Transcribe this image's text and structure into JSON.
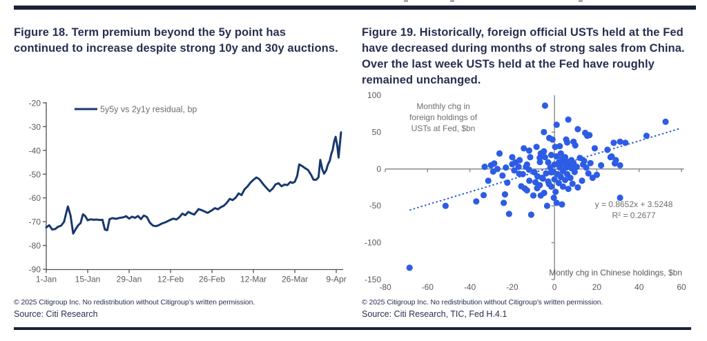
{
  "figures": {
    "fig18": {
      "title_lines": [
        "Figure 18. Term premium beyond the 5y point has",
        "continued to increase despite strong 10y and 30y auctions."
      ],
      "footer": {
        "copyright": "© 2025 Citigroup Inc. No redistribution without Citigroup’s written permission.",
        "source": "Source: Citi Research"
      }
    },
    "fig19": {
      "title_lines": [
        "Figure 19. Historically, foreign official USTs held at the Fed",
        "have decreased during months of strong sales from China.",
        "Over the last week USTs held at the Fed have roughly",
        "remained unchanged."
      ],
      "footer": {
        "copyright": "© 2025 Citigroup Inc. No redistribution without Citigroup’s written permission.",
        "source": "Source: Citi Research, TIC, Fed H.4.1"
      }
    }
  },
  "chart_data": [
    {
      "id": "fig18",
      "type": "line",
      "title": "Term premium beyond the 5y point has continued to increase despite strong 10y and 30y auctions",
      "axis_color": "#4f4f4f",
      "xlim_days": [
        0,
        98
      ],
      "ylim": [
        -90,
        -20
      ],
      "y_ticks": [
        -20,
        -30,
        -40,
        -50,
        -60,
        -70,
        -80,
        -90
      ],
      "x_ticks": [
        {
          "d": 0,
          "label": "1-Jan"
        },
        {
          "d": 14,
          "label": "15-Jan"
        },
        {
          "d": 28,
          "label": "29-Jan"
        },
        {
          "d": 42,
          "label": "12-Feb"
        },
        {
          "d": 56,
          "label": "26-Feb"
        },
        {
          "d": 70,
          "label": "12-Mar"
        },
        {
          "d": 84,
          "label": "26-Mar"
        },
        {
          "d": 98,
          "label": "9-Apr"
        }
      ],
      "series": [
        {
          "name": "5y5y vs 2y1y residual, bp",
          "color": "#17386e",
          "unit": "bp",
          "points": [
            [
              0,
              -72.4
            ],
            [
              1,
              -71.5
            ],
            [
              2,
              -73.3
            ],
            [
              3,
              -73.1
            ],
            [
              4,
              -72.1
            ],
            [
              5,
              -71.7
            ],
            [
              6,
              -70.1
            ],
            [
              7.3,
              -63.6
            ],
            [
              8.2,
              -67.3
            ],
            [
              9.1,
              -75.0
            ],
            [
              10,
              -73.0
            ],
            [
              10.8,
              -71.5
            ],
            [
              11.6,
              -70.6
            ],
            [
              12.4,
              -66.9
            ],
            [
              13.2,
              -67.7
            ],
            [
              14,
              -69.4
            ],
            [
              15,
              -69.0
            ],
            [
              16,
              -69.2
            ],
            [
              17,
              -69.1
            ],
            [
              18,
              -69.3
            ],
            [
              19,
              -69.2
            ],
            [
              19.8,
              -73.3
            ],
            [
              20.6,
              -73.6
            ],
            [
              21.4,
              -68.9
            ],
            [
              22.4,
              -68.5
            ],
            [
              23.6,
              -68.8
            ],
            [
              24.8,
              -68.4
            ],
            [
              26,
              -68.2
            ],
            [
              27,
              -67.7
            ],
            [
              28,
              -68.7
            ],
            [
              29,
              -67.9
            ],
            [
              30,
              -68.4
            ],
            [
              31,
              -67.6
            ],
            [
              32,
              -68.9
            ],
            [
              33,
              -67.4
            ],
            [
              34,
              -68.0
            ],
            [
              35,
              -70.4
            ],
            [
              36,
              -71.6
            ],
            [
              37,
              -71.9
            ],
            [
              38,
              -71.5
            ],
            [
              39,
              -70.8
            ],
            [
              40,
              -70.4
            ],
            [
              41,
              -69.8
            ],
            [
              42,
              -69.2
            ],
            [
              43,
              -68.7
            ],
            [
              44,
              -69.1
            ],
            [
              45,
              -68.1
            ],
            [
              46,
              -66.6
            ],
            [
              47,
              -67.3
            ],
            [
              48,
              -65.9
            ],
            [
              49,
              -66.5
            ],
            [
              50,
              -67.0
            ],
            [
              51.5,
              -64.7
            ],
            [
              53,
              -65.4
            ],
            [
              54.5,
              -66.3
            ],
            [
              56,
              -65.2
            ],
            [
              57,
              -64.3
            ],
            [
              58,
              -64.8
            ],
            [
              59,
              -63.9
            ],
            [
              60,
              -63.3
            ],
            [
              61,
              -62.1
            ],
            [
              62,
              -60.4
            ],
            [
              63,
              -60.9
            ],
            [
              64,
              -59.9
            ],
            [
              65,
              -58.1
            ],
            [
              66,
              -58.8
            ],
            [
              67,
              -56.4
            ],
            [
              68,
              -55.2
            ],
            [
              69,
              -53.6
            ],
            [
              70,
              -52.4
            ],
            [
              71,
              -51.4
            ],
            [
              72,
              -52.1
            ],
            [
              73.5,
              -54.5
            ],
            [
              74.5,
              -55.9
            ],
            [
              75.5,
              -57.2
            ],
            [
              76.5,
              -56.1
            ],
            [
              77.5,
              -54.3
            ],
            [
              78.5,
              -53.8
            ],
            [
              79.5,
              -55.1
            ],
            [
              80.5,
              -54.4
            ],
            [
              81.5,
              -54.6
            ],
            [
              82.5,
              -53.3
            ],
            [
              83.2,
              -53.7
            ],
            [
              84,
              -53.2
            ],
            [
              84.8,
              -50.8
            ],
            [
              85.5,
              -45.9
            ],
            [
              86.5,
              -46.6
            ],
            [
              87.5,
              -47.5
            ],
            [
              88.5,
              -48.3
            ],
            [
              89.5,
              -50.3
            ],
            [
              90.3,
              -52.3
            ],
            [
              91.2,
              -52.4
            ],
            [
              92,
              -51.3
            ],
            [
              92.6,
              -44.0
            ],
            [
              93.3,
              -48.0
            ],
            [
              93.9,
              -49.8
            ],
            [
              94.6,
              -48.4
            ],
            [
              95.2,
              -45.9
            ],
            [
              95.8,
              -44.4
            ],
            [
              96.3,
              -41.6
            ],
            [
              96.8,
              -39.7
            ],
            [
              97.3,
              -36.3
            ],
            [
              97.8,
              -34.3
            ],
            [
              98.4,
              -38.5
            ],
            [
              98.8,
              -43.0
            ],
            [
              99.6,
              -32.4
            ]
          ]
        }
      ]
    },
    {
      "id": "fig19",
      "type": "scatter",
      "title": "Monthly change in foreign holdings of USTs at Fed vs monthly change in Chinese holdings",
      "axis_color": "#7f7f7f",
      "point_color": "#2d5ce5",
      "xlim": [
        -80,
        60
      ],
      "ylim": [
        -150,
        100
      ],
      "x_ticks": [
        -80,
        -60,
        -40,
        -20,
        0,
        20,
        40,
        60
      ],
      "y_ticks": [
        100,
        50,
        0,
        -50,
        -100,
        -150
      ],
      "y_annotation_lines": [
        "Monthly chg in",
        "foreign holdings of",
        "USTs at Fed, $bn"
      ],
      "xlabel": "Montly chg in Chinese holdings, $bn",
      "trendline": {
        "equation": "y = 0.8652x + 3.5248",
        "r2": "R² = 0.2677",
        "slope": 0.8652,
        "intercept": 3.5248,
        "x_start": -68.5,
        "x_end": 59.5,
        "style": "dotted"
      },
      "points": [
        [
          -68.5,
          -134
        ],
        [
          -51.5,
          -50
        ],
        [
          -37,
          -44
        ],
        [
          -33.5,
          -35.5
        ],
        [
          -24,
          -46
        ],
        [
          -23.4,
          -34.5
        ],
        [
          -21.5,
          -61
        ],
        [
          -11,
          -62
        ],
        [
          -10,
          -36
        ],
        [
          -6.5,
          -36
        ],
        [
          -4.9,
          -32.5
        ],
        [
          -3.5,
          -50
        ],
        [
          1,
          -46
        ],
        [
          3.5,
          -48
        ],
        [
          -0.3,
          -39
        ],
        [
          31,
          -39
        ],
        [
          0.5,
          -31
        ],
        [
          -13,
          -29
        ],
        [
          6.5,
          -27
        ],
        [
          -8.2,
          -26
        ],
        [
          -14,
          -26.5
        ],
        [
          11,
          -25
        ],
        [
          -1.5,
          -24
        ],
        [
          4,
          -24
        ],
        [
          -15.7,
          -23.5
        ],
        [
          -7,
          -22
        ],
        [
          -2.6,
          -20.5
        ],
        [
          8.5,
          -20
        ],
        [
          2,
          -19
        ],
        [
          -22.3,
          -18.5
        ],
        [
          -9,
          -18
        ],
        [
          -3,
          -17
        ],
        [
          -31.3,
          -16
        ],
        [
          -11.9,
          -16
        ],
        [
          13,
          -16
        ],
        [
          5,
          -15
        ],
        [
          0,
          -14
        ],
        [
          -5.5,
          -13
        ],
        [
          7.5,
          -12
        ],
        [
          18,
          -12
        ],
        [
          -5.9,
          -12
        ],
        [
          3,
          -11
        ],
        [
          -8,
          -10
        ],
        [
          -24.6,
          -9
        ],
        [
          1.5,
          -7
        ],
        [
          6,
          -7
        ],
        [
          -15,
          -7
        ],
        [
          16,
          -6
        ],
        [
          -16.7,
          -6.5
        ],
        [
          -4,
          -6
        ],
        [
          -9.5,
          -4.5
        ],
        [
          -1.6,
          -4.5
        ],
        [
          -0.5,
          -4
        ],
        [
          9.5,
          -4
        ],
        [
          20,
          -8
        ],
        [
          -29,
          -3.5
        ],
        [
          4,
          -3
        ],
        [
          -19,
          -2
        ],
        [
          -12,
          -1
        ],
        [
          -27,
          0
        ],
        [
          8,
          1
        ],
        [
          -2,
          2
        ],
        [
          2.5,
          2
        ],
        [
          5.5,
          2
        ],
        [
          15,
          2
        ],
        [
          -23,
          2
        ],
        [
          -17,
          3
        ],
        [
          -13.5,
          3
        ],
        [
          10.5,
          3
        ],
        [
          -33,
          3
        ],
        [
          0,
          6
        ],
        [
          -30,
          5
        ],
        [
          31,
          5
        ],
        [
          7,
          5
        ],
        [
          22,
          5
        ],
        [
          -20,
          6.5
        ],
        [
          -13,
          6
        ],
        [
          13.5,
          6
        ],
        [
          4.5,
          7
        ],
        [
          -28.5,
          7.5
        ],
        [
          28.5,
          7.5
        ],
        [
          9,
          8
        ],
        [
          17,
          8
        ],
        [
          -18.5,
          9
        ],
        [
          2,
          9
        ],
        [
          -3,
          9
        ],
        [
          -6.9,
          9.5
        ],
        [
          6,
          10
        ],
        [
          14,
          11
        ],
        [
          -16.5,
          12
        ],
        [
          8,
          12
        ],
        [
          29,
          12
        ],
        [
          3.5,
          13
        ],
        [
          -7,
          15
        ],
        [
          12,
          15
        ],
        [
          -20,
          16
        ],
        [
          -11.5,
          16
        ],
        [
          -4.5,
          16
        ],
        [
          5,
          16
        ],
        [
          26.5,
          16
        ],
        [
          1,
          17
        ],
        [
          27,
          17
        ],
        [
          -1.5,
          19
        ],
        [
          3,
          21
        ],
        [
          -6.5,
          21
        ],
        [
          -26,
          21
        ],
        [
          -5,
          24
        ],
        [
          -12,
          25
        ],
        [
          25,
          26
        ],
        [
          19,
          28
        ],
        [
          -14.5,
          28
        ],
        [
          -8.5,
          30
        ],
        [
          0.3,
          30
        ],
        [
          2.5,
          31
        ],
        [
          9.8,
          32
        ],
        [
          28,
          35.5
        ],
        [
          33.5,
          35.5
        ],
        [
          6,
          36
        ],
        [
          31,
          37
        ],
        [
          9,
          37
        ],
        [
          -1,
          40
        ],
        [
          -2.5,
          42
        ],
        [
          5.5,
          40
        ],
        [
          43.5,
          45
        ],
        [
          15.5,
          45
        ],
        [
          16.5,
          46
        ],
        [
          14.5,
          49
        ],
        [
          -5,
          50
        ],
        [
          11,
          54
        ],
        [
          1,
          60
        ],
        [
          52.5,
          64
        ],
        [
          6.5,
          67
        ],
        [
          -4.5,
          86
        ]
      ]
    }
  ]
}
